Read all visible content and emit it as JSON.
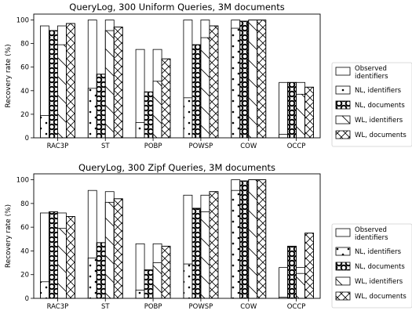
{
  "chart_data": [
    {
      "type": "bar",
      "title": "QueryLog, 300 Uniform Queries, 3M documents",
      "ylabel": "Recovery rate (%)",
      "ylim": [
        0,
        105
      ],
      "yticks": [
        0,
        20,
        40,
        60,
        80,
        100
      ],
      "categories": [
        "RAC3P",
        "ST",
        "POBP",
        "POWSP",
        "COW",
        "OCCP"
      ],
      "series": [
        {
          "name": "NL, identifiers",
          "pattern": "dots",
          "observed": [
            95,
            100,
            75,
            100,
            100,
            47
          ],
          "recovered": [
            19,
            42,
            13,
            34,
            93,
            3
          ]
        },
        {
          "name": "NL, documents",
          "pattern": "rings",
          "observed": [
            91,
            54,
            39,
            79,
            99,
            47
          ],
          "recovered": [
            91,
            54,
            39,
            79,
            99,
            47
          ]
        },
        {
          "name": "WL, identifiers",
          "pattern": "backslash",
          "observed": [
            95,
            100,
            75,
            100,
            100,
            47
          ],
          "recovered": [
            79,
            91,
            48,
            85,
            100,
            37
          ]
        },
        {
          "name": "WL, documents",
          "pattern": "cross",
          "observed": [
            97,
            94,
            67,
            95,
            100,
            43
          ],
          "recovered": [
            97,
            94,
            67,
            95,
            100,
            43
          ]
        }
      ],
      "legend": {
        "placement": "right",
        "entries": [
          {
            "label": "Observed identifiers",
            "pattern": "none"
          },
          {
            "label": "NL, identifiers",
            "pattern": "dots"
          },
          {
            "label": "NL, documents",
            "pattern": "rings"
          },
          {
            "label": "WL, identifiers",
            "pattern": "backslash"
          },
          {
            "label": "WL, documents",
            "pattern": "cross"
          }
        ]
      },
      "grid": false
    },
    {
      "type": "bar",
      "title": "QueryLog, 300 Zipf Queries, 3M documents",
      "ylabel": "Recovery rate (%)",
      "ylim": [
        0,
        105
      ],
      "yticks": [
        0,
        20,
        40,
        60,
        80,
        100
      ],
      "categories": [
        "RAC3P",
        "ST",
        "POBP",
        "POWSP",
        "COW",
        "OCCP"
      ],
      "series": [
        {
          "name": "NL, identifiers",
          "pattern": "dots",
          "observed": [
            72,
            91,
            46,
            87,
            100,
            26
          ],
          "recovered": [
            14,
            34,
            7,
            29,
            91,
            1
          ]
        },
        {
          "name": "NL, documents",
          "pattern": "rings",
          "observed": [
            73,
            47,
            24,
            76,
            99,
            44
          ],
          "recovered": [
            73,
            47,
            24,
            76,
            99,
            44
          ]
        },
        {
          "name": "WL, identifiers",
          "pattern": "backslash",
          "observed": [
            72,
            90,
            46,
            87,
            100,
            26
          ],
          "recovered": [
            59,
            81,
            30,
            73,
            100,
            21
          ]
        },
        {
          "name": "WL, documents",
          "pattern": "cross",
          "observed": [
            69,
            84,
            44,
            90,
            100,
            55
          ],
          "recovered": [
            69,
            84,
            44,
            90,
            100,
            55
          ]
        }
      ],
      "legend": {
        "placement": "right",
        "entries": [
          {
            "label": "Observed identifiers",
            "pattern": "none"
          },
          {
            "label": "NL, identifiers",
            "pattern": "dots"
          },
          {
            "label": "NL, documents",
            "pattern": "rings"
          },
          {
            "label": "WL, identifiers",
            "pattern": "backslash"
          },
          {
            "label": "WL, documents",
            "pattern": "cross"
          }
        ]
      },
      "grid": false
    }
  ]
}
